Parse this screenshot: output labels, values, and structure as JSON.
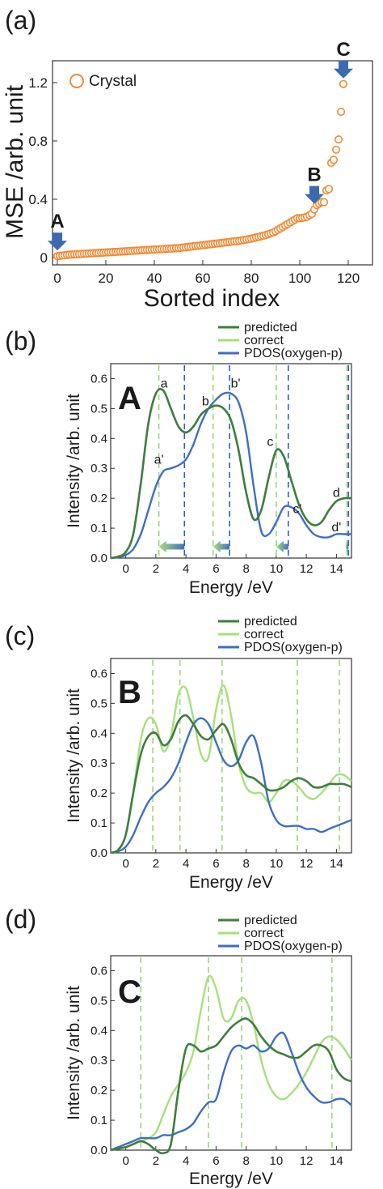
{
  "colors": {
    "orange": "#F08A34",
    "predicted": "#3E7E3E",
    "correct": "#A6E07A",
    "pdos": "#3D6FC2",
    "arrow_blue": "#3B6AB1",
    "vline_green": "#9BD67A",
    "vline_blue": "#2E5FB5"
  },
  "chart_data": [
    {
      "panel": "(a)",
      "type": "scatter",
      "xlabel": "Sorted index",
      "ylabel": "MSE /arb. unit",
      "xlim": [
        -2,
        130
      ],
      "ylim": [
        -0.05,
        1.35
      ],
      "xticks": [
        "0",
        "20",
        "40",
        "60",
        "80",
        "100",
        "120"
      ],
      "yticks": [
        "0",
        "0.4",
        "0.8",
        "1.2"
      ],
      "legend": "Crystal",
      "legend_position": "top-left",
      "markers": [
        {
          "label": "A",
          "x": 0
        },
        {
          "label": "B",
          "x": 106
        },
        {
          "label": "C",
          "x": 118
        }
      ],
      "series": [
        {
          "name": "Crystal",
          "x": [
            0,
            1,
            2,
            3,
            4,
            5,
            6,
            7,
            8,
            9,
            10,
            11,
            12,
            13,
            14,
            15,
            16,
            17,
            18,
            19,
            20,
            21,
            22,
            23,
            24,
            25,
            26,
            27,
            28,
            29,
            30,
            31,
            32,
            33,
            34,
            35,
            36,
            37,
            38,
            39,
            40,
            41,
            42,
            43,
            44,
            45,
            46,
            47,
            48,
            49,
            50,
            51,
            52,
            53,
            54,
            55,
            56,
            57,
            58,
            59,
            60,
            61,
            62,
            63,
            64,
            65,
            66,
            67,
            68,
            69,
            70,
            71,
            72,
            73,
            74,
            75,
            76,
            77,
            78,
            79,
            80,
            81,
            82,
            83,
            84,
            85,
            86,
            87,
            88,
            89,
            90,
            91,
            92,
            93,
            94,
            95,
            96,
            97,
            98,
            99,
            100,
            101,
            102,
            103,
            104,
            105,
            106,
            107,
            108,
            109,
            110,
            111,
            112,
            113,
            114,
            115,
            116,
            117,
            118
          ],
          "y": [
            0.01,
            0.012,
            0.014,
            0.016,
            0.018,
            0.02,
            0.021,
            0.022,
            0.023,
            0.024,
            0.025,
            0.026,
            0.027,
            0.028,
            0.029,
            0.03,
            0.031,
            0.032,
            0.033,
            0.034,
            0.035,
            0.036,
            0.037,
            0.038,
            0.039,
            0.04,
            0.041,
            0.042,
            0.043,
            0.044,
            0.045,
            0.046,
            0.047,
            0.048,
            0.049,
            0.05,
            0.051,
            0.052,
            0.053,
            0.054,
            0.055,
            0.056,
            0.057,
            0.058,
            0.059,
            0.06,
            0.061,
            0.062,
            0.063,
            0.064,
            0.065,
            0.067,
            0.069,
            0.071,
            0.073,
            0.075,
            0.077,
            0.079,
            0.081,
            0.083,
            0.085,
            0.087,
            0.089,
            0.091,
            0.093,
            0.095,
            0.097,
            0.099,
            0.101,
            0.103,
            0.105,
            0.107,
            0.109,
            0.111,
            0.113,
            0.115,
            0.118,
            0.121,
            0.124,
            0.127,
            0.13,
            0.134,
            0.138,
            0.142,
            0.146,
            0.15,
            0.155,
            0.16,
            0.166,
            0.172,
            0.18,
            0.19,
            0.2,
            0.21,
            0.22,
            0.23,
            0.24,
            0.25,
            0.26,
            0.27,
            0.27,
            0.272,
            0.275,
            0.28,
            0.29,
            0.3,
            0.33,
            0.36,
            0.37,
            0.38,
            0.38,
            0.46,
            0.47,
            0.65,
            0.67,
            0.74,
            0.81,
            1.0,
            1.19
          ]
        }
      ]
    },
    {
      "panel": "(b)",
      "type": "line",
      "big_letter": "A",
      "xlabel": "Energy /eV",
      "ylabel": "Intensity /arb. unit",
      "xlim": [
        -1,
        15
      ],
      "ylim": [
        0,
        0.65
      ],
      "xticks": [
        "0",
        "2",
        "4",
        "6",
        "8",
        "10",
        "12",
        "14"
      ],
      "yticks": [
        "0.0",
        "0.1",
        "0.2",
        "0.3",
        "0.4",
        "0.5",
        "0.6"
      ],
      "legend": [
        "predicted",
        "correct",
        "PDOS(oxygen-p)"
      ],
      "green_vlines": [
        2.2,
        5.8,
        10.0,
        14.7
      ],
      "blue_vlines": [
        3.9,
        6.9,
        10.8,
        14.8
      ],
      "peak_labels": [
        {
          "text": "a",
          "x": 2.55,
          "y": 0.57
        },
        {
          "text": "a'",
          "x": 2.2,
          "y": 0.315
        },
        {
          "text": "b",
          "x": 5.3,
          "y": 0.51
        },
        {
          "text": "b'",
          "x": 7.3,
          "y": 0.57
        },
        {
          "text": "c",
          "x": 9.6,
          "y": 0.375
        },
        {
          "text": "c'",
          "x": 11.4,
          "y": 0.15
        },
        {
          "text": "d",
          "x": 14.0,
          "y": 0.205
        },
        {
          "text": "d'",
          "x": 14.0,
          "y": 0.09
        }
      ],
      "arrows": [
        {
          "from": 3.9,
          "to": 2.2
        },
        {
          "from": 6.9,
          "to": 5.8
        },
        {
          "from": 10.8,
          "to": 10.0
        },
        {
          "from": 14.8,
          "to": 14.6
        }
      ],
      "x": [
        -1,
        -0.5,
        0,
        0.5,
        1,
        1.5,
        2,
        2.5,
        3,
        3.5,
        4,
        4.5,
        5,
        5.5,
        6,
        6.5,
        7,
        7.5,
        8,
        8.5,
        9,
        9.5,
        10,
        10.5,
        11,
        11.5,
        12,
        12.5,
        13,
        13.5,
        14,
        14.5,
        15
      ],
      "series": [
        {
          "name": "predicted",
          "values": [
            0.0,
            0.005,
            0.02,
            0.08,
            0.25,
            0.45,
            0.55,
            0.56,
            0.5,
            0.44,
            0.42,
            0.44,
            0.48,
            0.5,
            0.51,
            0.5,
            0.46,
            0.36,
            0.22,
            0.13,
            0.16,
            0.27,
            0.36,
            0.34,
            0.26,
            0.18,
            0.13,
            0.11,
            0.12,
            0.16,
            0.19,
            0.2,
            0.2
          ]
        },
        {
          "name": "correct",
          "values": [
            0.0,
            0.005,
            0.02,
            0.08,
            0.25,
            0.45,
            0.55,
            0.56,
            0.5,
            0.44,
            0.42,
            0.44,
            0.48,
            0.5,
            0.51,
            0.5,
            0.46,
            0.36,
            0.22,
            0.13,
            0.16,
            0.27,
            0.36,
            0.34,
            0.26,
            0.18,
            0.13,
            0.11,
            0.12,
            0.16,
            0.19,
            0.2,
            0.2
          ]
        },
        {
          "name": "PDOS(oxygen-p)",
          "values": [
            0.0,
            0.003,
            0.01,
            0.03,
            0.08,
            0.16,
            0.24,
            0.29,
            0.3,
            0.31,
            0.33,
            0.38,
            0.45,
            0.5,
            0.53,
            0.55,
            0.55,
            0.52,
            0.42,
            0.24,
            0.09,
            0.08,
            0.12,
            0.17,
            0.17,
            0.15,
            0.11,
            0.08,
            0.07,
            0.07,
            0.08,
            0.08,
            0.08
          ]
        }
      ]
    },
    {
      "panel": "(c)",
      "type": "line",
      "big_letter": "B",
      "xlabel": "Energy /eV",
      "ylabel": "Intensity /arb. unit",
      "xlim": [
        -1,
        15
      ],
      "ylim": [
        0,
        0.65
      ],
      "xticks": [
        "0",
        "2",
        "4",
        "6",
        "8",
        "10",
        "12",
        "14"
      ],
      "yticks": [
        "0.0",
        "0.1",
        "0.2",
        "0.3",
        "0.4",
        "0.5",
        "0.6"
      ],
      "legend": [
        "predicted",
        "correct",
        "PDOS(oxygen-p)"
      ],
      "green_vlines": [
        1.8,
        3.6,
        6.4,
        11.4,
        14.2
      ],
      "x": [
        -1,
        -0.5,
        0,
        0.5,
        1,
        1.5,
        2,
        2.5,
        3,
        3.5,
        4,
        4.5,
        5,
        5.5,
        6,
        6.5,
        7,
        7.5,
        8,
        8.5,
        9,
        9.5,
        10,
        10.5,
        11,
        11.5,
        12,
        12.5,
        13,
        13.5,
        14,
        14.5,
        15
      ],
      "series": [
        {
          "name": "predicted",
          "values": [
            0.0,
            0.01,
            0.06,
            0.2,
            0.33,
            0.39,
            0.4,
            0.36,
            0.38,
            0.44,
            0.46,
            0.43,
            0.39,
            0.38,
            0.41,
            0.43,
            0.38,
            0.3,
            0.26,
            0.25,
            0.23,
            0.21,
            0.21,
            0.22,
            0.24,
            0.25,
            0.24,
            0.22,
            0.22,
            0.23,
            0.23,
            0.23,
            0.22
          ]
        },
        {
          "name": "correct",
          "values": [
            0.0,
            0.01,
            0.06,
            0.2,
            0.38,
            0.45,
            0.43,
            0.34,
            0.39,
            0.53,
            0.55,
            0.45,
            0.33,
            0.32,
            0.48,
            0.56,
            0.46,
            0.3,
            0.22,
            0.2,
            0.2,
            0.17,
            0.2,
            0.24,
            0.24,
            0.22,
            0.19,
            0.18,
            0.2,
            0.23,
            0.26,
            0.26,
            0.24
          ]
        },
        {
          "name": "PDOS(oxygen-p)",
          "values": [
            0.0,
            0.005,
            0.02,
            0.06,
            0.12,
            0.17,
            0.2,
            0.22,
            0.25,
            0.3,
            0.37,
            0.43,
            0.45,
            0.43,
            0.37,
            0.31,
            0.29,
            0.31,
            0.37,
            0.39,
            0.3,
            0.17,
            0.11,
            0.09,
            0.09,
            0.09,
            0.08,
            0.08,
            0.07,
            0.08,
            0.09,
            0.1,
            0.11
          ]
        }
      ]
    },
    {
      "panel": "(d)",
      "type": "line",
      "big_letter": "C",
      "xlabel": "Energy /eV",
      "ylabel": "Intensity /arb. unit",
      "xlim": [
        -1,
        15
      ],
      "ylim": [
        0,
        0.65
      ],
      "xticks": [
        "0",
        "2",
        "4",
        "6",
        "8",
        "10",
        "12",
        "14"
      ],
      "yticks": [
        "0.0",
        "0.1",
        "0.2",
        "0.3",
        "0.4",
        "0.5",
        "0.6"
      ],
      "legend": [
        "predicted",
        "correct",
        "PDOS(oxygen-p)"
      ],
      "green_vlines": [
        1.0,
        5.5,
        7.7,
        13.7
      ],
      "x": [
        -1,
        -0.5,
        0,
        0.5,
        1,
        1.5,
        2,
        2.5,
        3,
        3.5,
        4,
        4.5,
        5,
        5.5,
        6,
        6.5,
        7,
        7.5,
        8,
        8.5,
        9,
        9.5,
        10,
        10.5,
        11,
        11.5,
        12,
        12.5,
        13,
        13.5,
        14,
        14.5,
        15
      ],
      "series": [
        {
          "name": "predicted",
          "values": [
            0.0,
            0.005,
            0.01,
            0.02,
            0.03,
            0.02,
            0.0,
            -0.01,
            0.02,
            0.2,
            0.34,
            0.35,
            0.33,
            0.34,
            0.35,
            0.38,
            0.41,
            0.43,
            0.44,
            0.42,
            0.38,
            0.35,
            0.33,
            0.32,
            0.31,
            0.31,
            0.33,
            0.35,
            0.35,
            0.33,
            0.27,
            0.24,
            0.23
          ]
        },
        {
          "name": "correct",
          "values": [
            0.0,
            0.005,
            0.01,
            0.02,
            0.03,
            0.04,
            0.06,
            0.12,
            0.18,
            0.22,
            0.26,
            0.33,
            0.47,
            0.58,
            0.54,
            0.44,
            0.44,
            0.5,
            0.5,
            0.42,
            0.3,
            0.22,
            0.18,
            0.17,
            0.19,
            0.22,
            0.26,
            0.31,
            0.36,
            0.38,
            0.37,
            0.34,
            0.3
          ]
        },
        {
          "name": "PDOS(oxygen-p)",
          "values": [
            0.0,
            0.01,
            0.02,
            0.03,
            0.04,
            0.04,
            0.04,
            0.05,
            0.05,
            0.06,
            0.07,
            0.09,
            0.13,
            0.16,
            0.17,
            0.26,
            0.33,
            0.35,
            0.34,
            0.35,
            0.33,
            0.34,
            0.38,
            0.39,
            0.33,
            0.26,
            0.21,
            0.18,
            0.16,
            0.16,
            0.17,
            0.17,
            0.15
          ]
        }
      ]
    }
  ]
}
